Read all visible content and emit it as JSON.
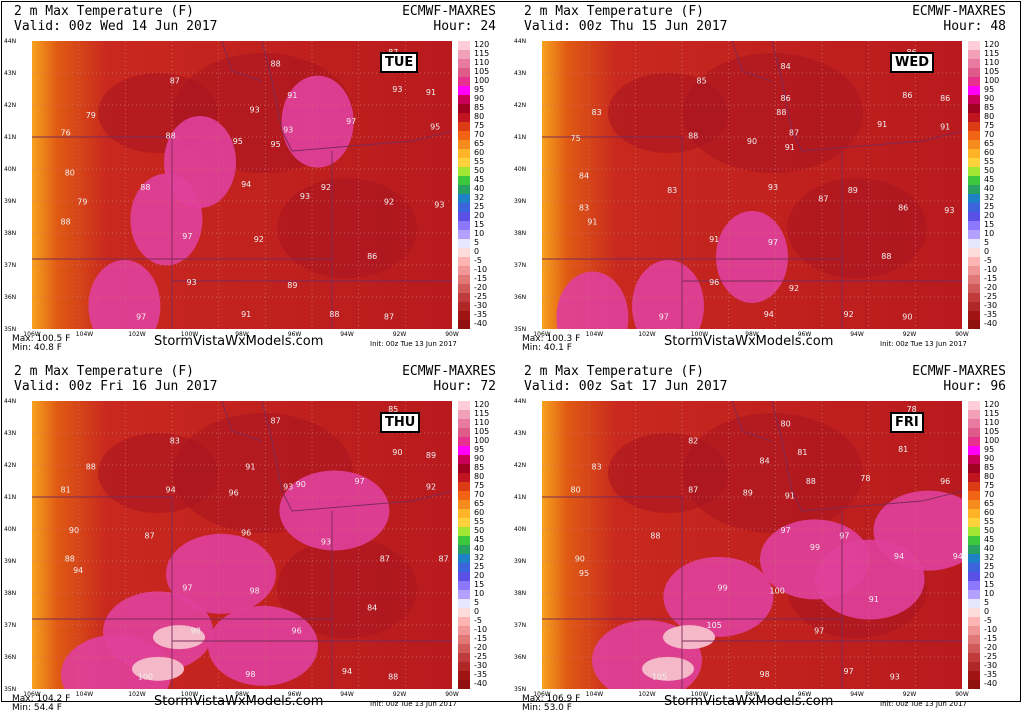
{
  "panels": [
    {
      "title": "2 m Max Temperature (F)",
      "model": "ECMWF-MAXRES",
      "valid": "Valid: 00z Wed 14 Jun 2017",
      "hour": "Hour: 24",
      "day": "TUE",
      "max": "Max: 100.5 F",
      "min": "Min: 40.8 F",
      "site": "StormVistaWxModels.com",
      "init": "Init: 00z Tue 13 Jun 2017",
      "hot": [
        [
          0.32,
          0.62
        ],
        [
          0.4,
          0.42
        ],
        [
          0.68,
          0.28
        ],
        [
          0.22,
          0.92
        ]
      ],
      "vals": [
        [
          "87",
          0.86,
          0.02
        ],
        [
          "88",
          0.58,
          0.06
        ],
        [
          "87",
          0.34,
          0.12
        ],
        [
          "79",
          0.14,
          0.24
        ],
        [
          "91",
          0.62,
          0.17
        ],
        [
          "93",
          0.87,
          0.15
        ],
        [
          "91",
          0.95,
          0.16
        ],
        [
          "93",
          0.53,
          0.22
        ],
        [
          "97",
          0.76,
          0.26
        ],
        [
          "95",
          0.96,
          0.28
        ],
        [
          "88",
          0.33,
          0.31
        ],
        [
          "95",
          0.49,
          0.33
        ],
        [
          "93",
          0.61,
          0.29
        ],
        [
          "95",
          0.58,
          0.34
        ],
        [
          "76",
          0.08,
          0.3
        ],
        [
          "80",
          0.09,
          0.44
        ],
        [
          "94",
          0.51,
          0.48
        ],
        [
          "92",
          0.7,
          0.49
        ],
        [
          "93",
          0.65,
          0.52
        ],
        [
          "88",
          0.27,
          0.49
        ],
        [
          "79",
          0.12,
          0.54
        ],
        [
          "92",
          0.85,
          0.54
        ],
        [
          "93",
          0.97,
          0.55
        ],
        [
          "88",
          0.08,
          0.61
        ],
        [
          "97",
          0.37,
          0.66
        ],
        [
          "92",
          0.54,
          0.67
        ],
        [
          "86",
          0.81,
          0.73
        ],
        [
          "93",
          0.38,
          0.82
        ],
        [
          "89",
          0.62,
          0.83
        ],
        [
          "97",
          0.26,
          0.94
        ],
        [
          "91",
          0.51,
          0.93
        ],
        [
          "88",
          0.72,
          0.93
        ],
        [
          "87",
          0.85,
          0.94
        ]
      ]
    },
    {
      "title": "2 m Max Temperature (F)",
      "model": "ECMWF-MAXRES",
      "valid": "Valid: 00z Thu 15 Jun 2017",
      "hour": "Hour: 48",
      "day": "WED",
      "max": "Max: 100.3 F",
      "min": "Min: 40.1 F",
      "site": "StormVistaWxModels.com",
      "init": "Init: 00z Tue 13 Jun 2017",
      "hot": [
        [
          0.5,
          0.75
        ],
        [
          0.3,
          0.92
        ],
        [
          0.12,
          0.96
        ]
      ],
      "vals": [
        [
          "86",
          0.88,
          0.02
        ],
        [
          "84",
          0.58,
          0.07
        ],
        [
          "85",
          0.38,
          0.12
        ],
        [
          "83",
          0.13,
          0.23
        ],
        [
          "86",
          0.58,
          0.18
        ],
        [
          "86",
          0.87,
          0.17
        ],
        [
          "86",
          0.96,
          0.18
        ],
        [
          "88",
          0.57,
          0.23
        ],
        [
          "91",
          0.81,
          0.27
        ],
        [
          "91",
          0.96,
          0.28
        ],
        [
          "75",
          0.08,
          0.32
        ],
        [
          "88",
          0.36,
          0.31
        ],
        [
          "90",
          0.5,
          0.33
        ],
        [
          "87",
          0.6,
          0.3
        ],
        [
          "91",
          0.59,
          0.35
        ],
        [
          "84",
          0.1,
          0.45
        ],
        [
          "83",
          0.31,
          0.5
        ],
        [
          "93",
          0.55,
          0.49
        ],
        [
          "87",
          0.67,
          0.53
        ],
        [
          "89",
          0.74,
          0.5
        ],
        [
          "86",
          0.86,
          0.56
        ],
        [
          "93",
          0.97,
          0.57
        ],
        [
          "83",
          0.1,
          0.56
        ],
        [
          "91",
          0.12,
          0.61
        ],
        [
          "91",
          0.41,
          0.67
        ],
        [
          "97",
          0.55,
          0.68
        ],
        [
          "88",
          0.82,
          0.73
        ],
        [
          "96",
          0.41,
          0.82
        ],
        [
          "92",
          0.6,
          0.84
        ],
        [
          "97",
          0.29,
          0.94
        ],
        [
          "94",
          0.54,
          0.93
        ],
        [
          "92",
          0.73,
          0.93
        ],
        [
          "90",
          0.87,
          0.94
        ]
      ]
    },
    {
      "title": "2 m Max Temperature (F)",
      "model": "ECMWF-MAXRES",
      "valid": "Valid: 00z Fri 16 Jun 2017",
      "hour": "Hour: 72",
      "day": "THU",
      "max": "Max: 104.2 F",
      "min": "Min: 54.4 F",
      "site": "StormVistaWxModels.com",
      "init": "Init: 00z Tue 13 Jun 2017",
      "hot": [
        [
          0.45,
          0.6
        ],
        [
          0.3,
          0.8
        ],
        [
          0.72,
          0.38
        ],
        [
          0.55,
          0.85
        ],
        [
          0.2,
          0.95
        ]
      ],
      "vals": [
        [
          "85",
          0.86,
          0.01
        ],
        [
          "87",
          0.58,
          0.05
        ],
        [
          "83",
          0.34,
          0.12
        ],
        [
          "88",
          0.14,
          0.21
        ],
        [
          "91",
          0.52,
          0.21
        ],
        [
          "90",
          0.87,
          0.16
        ],
        [
          "89",
          0.95,
          0.17
        ],
        [
          "94",
          0.33,
          0.29
        ],
        [
          "96",
          0.48,
          0.3
        ],
        [
          "93",
          0.61,
          0.28
        ],
        [
          "90",
          0.64,
          0.27
        ],
        [
          "97",
          0.78,
          0.26
        ],
        [
          "92",
          0.95,
          0.28
        ],
        [
          "81",
          0.08,
          0.29
        ],
        [
          "90",
          0.1,
          0.43
        ],
        [
          "96",
          0.51,
          0.44
        ],
        [
          "93",
          0.7,
          0.47
        ],
        [
          "87",
          0.28,
          0.45
        ],
        [
          "88",
          0.09,
          0.53
        ],
        [
          "94",
          0.11,
          0.57
        ],
        [
          "87",
          0.84,
          0.53
        ],
        [
          "87",
          0.98,
          0.53
        ],
        [
          "97",
          0.37,
          0.63
        ],
        [
          "98",
          0.53,
          0.64
        ],
        [
          "84",
          0.81,
          0.7
        ],
        [
          "98",
          0.39,
          0.78
        ],
        [
          "96",
          0.63,
          0.78
        ],
        [
          "100",
          0.27,
          0.94
        ],
        [
          "98",
          0.52,
          0.93
        ],
        [
          "94",
          0.75,
          0.92
        ],
        [
          "88",
          0.86,
          0.94
        ]
      ]
    },
    {
      "title": "2 m Max Temperature (F)",
      "model": "ECMWF-MAXRES",
      "valid": "Valid: 00z Sat 17 Jun 2017",
      "hour": "Hour: 96",
      "day": "FRI",
      "max": "Max: 106.9 F",
      "min": "Min: 53.0 F",
      "site": "StormVistaWxModels.com",
      "init": "Init: 00z Tue 13 Jun 2017",
      "hot": [
        [
          0.42,
          0.68
        ],
        [
          0.25,
          0.9
        ],
        [
          0.65,
          0.55
        ],
        [
          0.78,
          0.62
        ],
        [
          0.92,
          0.45
        ]
      ],
      "vals": [
        [
          "78",
          0.88,
          0.01
        ],
        [
          "80",
          0.58,
          0.06
        ],
        [
          "82",
          0.36,
          0.12
        ],
        [
          "83",
          0.13,
          0.21
        ],
        [
          "84",
          0.53,
          0.19
        ],
        [
          "81",
          0.62,
          0.16
        ],
        [
          "81",
          0.86,
          0.15
        ],
        [
          "78",
          0.77,
          0.25
        ],
        [
          "96",
          0.96,
          0.26
        ],
        [
          "80",
          0.08,
          0.29
        ],
        [
          "87",
          0.36,
          0.29
        ],
        [
          "89",
          0.49,
          0.3
        ],
        [
          "91",
          0.59,
          0.31
        ],
        [
          "88",
          0.64,
          0.26
        ],
        [
          "88",
          0.27,
          0.45
        ],
        [
          "97",
          0.58,
          0.43
        ],
        [
          "99",
          0.65,
          0.49
        ],
        [
          "97",
          0.72,
          0.45
        ],
        [
          "94",
          0.85,
          0.52
        ],
        [
          "94",
          0.99,
          0.52
        ],
        [
          "90",
          0.09,
          0.53
        ],
        [
          "95",
          0.1,
          0.58
        ],
        [
          "99",
          0.43,
          0.63
        ],
        [
          "100",
          0.56,
          0.64
        ],
        [
          "91",
          0.79,
          0.67
        ],
        [
          "105",
          0.41,
          0.76
        ],
        [
          "97",
          0.66,
          0.78
        ],
        [
          "105",
          0.28,
          0.94
        ],
        [
          "98",
          0.53,
          0.93
        ],
        [
          "97",
          0.73,
          0.92
        ],
        [
          "93",
          0.84,
          0.94
        ]
      ]
    }
  ],
  "colorbar": {
    "labels": [
      "120",
      "115",
      "110",
      "105",
      "100",
      "95",
      "90",
      "85",
      "80",
      "75",
      "70",
      "65",
      "60",
      "55",
      "50",
      "45",
      "40",
      "32",
      "25",
      "20",
      "15",
      "10",
      "5",
      "0",
      "-5",
      "-10",
      "-15",
      "-20",
      "-25",
      "-30",
      "-35",
      "-40"
    ],
    "colors": [
      "#ffccd9",
      "#f2a0b8",
      "#e87aa0",
      "#de5a8a",
      "#e8308f",
      "#ff00ff",
      "#c8005a",
      "#a00020",
      "#c0141e",
      "#dc3c14",
      "#f06414",
      "#f78c1e",
      "#ffb428",
      "#ffd23c",
      "#a0e632",
      "#3cc83c",
      "#28a064",
      "#1e82c8",
      "#3c64dc",
      "#5a50e6",
      "#8c78ff",
      "#b4a0ff",
      "#e6e6ff",
      "#ffdcdc",
      "#ffb4b4",
      "#f09696",
      "#e07878",
      "#d05a5a",
      "#c03c3c",
      "#b02828",
      "#a01414",
      "#901010"
    ]
  },
  "map_labels": {
    "lats": [
      "44N",
      "43N",
      "42N",
      "41N",
      "40N",
      "39N",
      "38N",
      "37N",
      "36N",
      "35N"
    ],
    "lons": [
      "106W",
      "104W",
      "102W",
      "100W",
      "98W",
      "96W",
      "94W",
      "92W",
      "90W"
    ]
  }
}
